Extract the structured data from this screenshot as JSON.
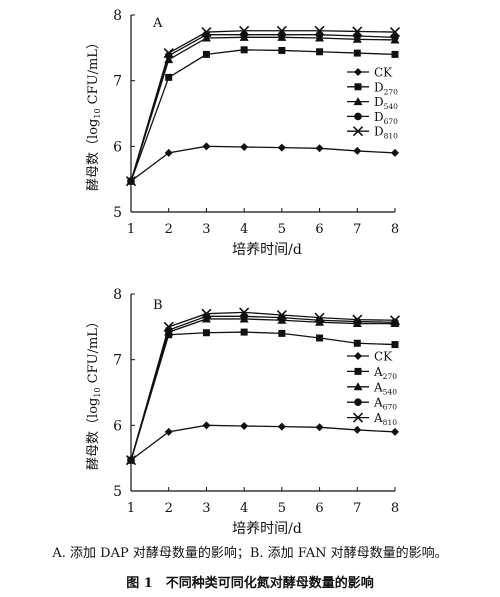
{
  "chart_data": [
    {
      "type": "line",
      "panel_label": "A",
      "ylabel_parts": [
        "酵母数（log",
        "10",
        " CFU/mL）"
      ],
      "xlabel": "培养时间/d",
      "x": [
        1,
        2,
        3,
        4,
        5,
        6,
        7,
        8
      ],
      "xlim": [
        1,
        8
      ],
      "ylim": [
        5,
        8
      ],
      "yticks": [
        5,
        6,
        7,
        8
      ],
      "grid": false,
      "legend_position": "right",
      "series": [
        {
          "name": "CK",
          "label": "CK",
          "sub": "",
          "marker": "diamond",
          "values": [
            5.47,
            5.9,
            6.0,
            5.99,
            5.98,
            5.97,
            5.93,
            5.9
          ]
        },
        {
          "name": "D270",
          "label": "D",
          "sub": "270",
          "marker": "square",
          "values": [
            5.47,
            7.05,
            7.4,
            7.47,
            7.46,
            7.44,
            7.42,
            7.4
          ]
        },
        {
          "name": "D540",
          "label": "D",
          "sub": "540",
          "marker": "triangle",
          "values": [
            5.47,
            7.32,
            7.65,
            7.66,
            7.66,
            7.65,
            7.63,
            7.62
          ]
        },
        {
          "name": "D670",
          "label": "D",
          "sub": "670",
          "marker": "circle",
          "values": [
            5.47,
            7.38,
            7.7,
            7.7,
            7.7,
            7.7,
            7.68,
            7.66
          ]
        },
        {
          "name": "D810",
          "label": "D",
          "sub": "810",
          "marker": "x",
          "values": [
            5.47,
            7.42,
            7.74,
            7.76,
            7.76,
            7.76,
            7.75,
            7.74
          ]
        }
      ]
    },
    {
      "type": "line",
      "panel_label": "B",
      "ylabel_parts": [
        "酵母数（log",
        "10",
        " CFU/mL）"
      ],
      "xlabel": "培养时间/d",
      "x": [
        1,
        2,
        3,
        4,
        5,
        6,
        7,
        8
      ],
      "xlim": [
        1,
        8
      ],
      "ylim": [
        5,
        8
      ],
      "yticks": [
        5,
        6,
        7,
        8
      ],
      "grid": false,
      "legend_position": "right",
      "series": [
        {
          "name": "CK",
          "label": "CK",
          "sub": "",
          "marker": "diamond",
          "values": [
            5.47,
            5.9,
            6.0,
            5.99,
            5.98,
            5.97,
            5.93,
            5.9
          ]
        },
        {
          "name": "A270",
          "label": "A",
          "sub": "270",
          "marker": "square",
          "values": [
            5.47,
            7.38,
            7.41,
            7.42,
            7.4,
            7.33,
            7.25,
            7.23
          ]
        },
        {
          "name": "A540",
          "label": "A",
          "sub": "540",
          "marker": "triangle",
          "values": [
            5.47,
            7.42,
            7.62,
            7.62,
            7.6,
            7.57,
            7.55,
            7.55
          ]
        },
        {
          "name": "A670",
          "label": "A",
          "sub": "670",
          "marker": "circle",
          "values": [
            5.47,
            7.45,
            7.66,
            7.66,
            7.64,
            7.6,
            7.58,
            7.57
          ]
        },
        {
          "name": "A810",
          "label": "A",
          "sub": "810",
          "marker": "x",
          "values": [
            5.47,
            7.5,
            7.7,
            7.72,
            7.68,
            7.64,
            7.61,
            7.6
          ]
        }
      ]
    }
  ],
  "caption": {
    "note": "A. 添加 DAP 对酵母数量的影响；B. 添加 FAN 对酵母数量的影响。",
    "title": "图 1　不同种类可同化氮对酵母数量的影响"
  },
  "colors": {
    "ink": "#111111",
    "background": "#ffffff"
  }
}
